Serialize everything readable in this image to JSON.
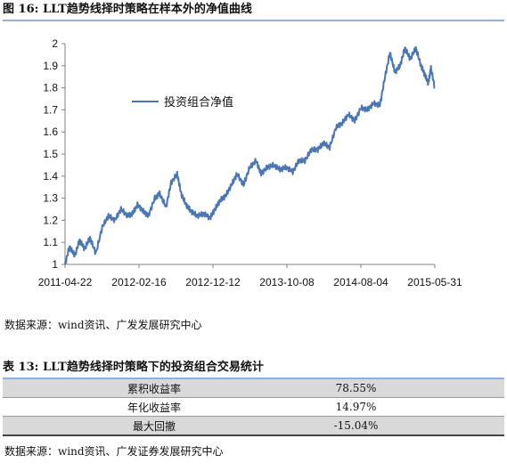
{
  "figure": {
    "title": "图 16: LLT趋势线择时策略在样本外的净值曲线",
    "source": "数据来源：wind资讯、广发发展研究中心"
  },
  "chart_data": {
    "type": "line",
    "x_ticks": [
      "2011-04-22",
      "2012-02-16",
      "2012-12-12",
      "2013-10-08",
      "2014-08-04",
      "2015-05-31"
    ],
    "y_ticks": [
      "1",
      "1.1",
      "1.2",
      "1.3",
      "1.4",
      "1.5",
      "1.6",
      "1.7",
      "1.8",
      "1.9",
      "2"
    ],
    "ylim": [
      1,
      2
    ],
    "xlim": [
      "2011-04-22",
      "2015-05-31"
    ],
    "legend": {
      "label": "投资组合净值",
      "placement": "upper-left"
    },
    "grid": false,
    "color": "#4a76b4",
    "series": [
      {
        "name": "投资组合净值",
        "x": [
          "2011-04-22",
          "2011-05-10",
          "2011-06-01",
          "2011-06-20",
          "2011-07-10",
          "2011-08-01",
          "2011-08-25",
          "2011-09-20",
          "2011-10-15",
          "2011-11-10",
          "2011-12-05",
          "2012-01-01",
          "2012-01-20",
          "2012-02-10",
          "2012-03-05",
          "2012-03-25",
          "2012-04-20",
          "2012-05-10",
          "2012-06-05",
          "2012-06-25",
          "2012-07-20",
          "2012-08-05",
          "2012-08-25",
          "2012-09-15",
          "2012-10-10",
          "2012-11-05",
          "2012-11-30",
          "2012-12-20",
          "2013-01-10",
          "2013-02-01",
          "2013-02-25",
          "2013-03-20",
          "2013-04-15",
          "2013-05-10",
          "2013-06-05",
          "2013-06-25",
          "2013-07-20",
          "2013-08-15",
          "2013-09-10",
          "2013-10-05",
          "2013-11-01",
          "2013-11-25",
          "2013-12-20",
          "2014-01-15",
          "2014-02-10",
          "2014-03-05",
          "2014-03-30",
          "2014-04-25",
          "2014-05-20",
          "2014-06-15",
          "2014-07-10",
          "2014-08-05",
          "2014-08-30",
          "2014-09-25",
          "2014-10-20",
          "2014-11-10",
          "2014-11-30",
          "2014-12-20",
          "2015-01-10",
          "2015-01-30",
          "2015-02-20",
          "2015-03-15",
          "2015-04-05",
          "2015-04-20",
          "2015-05-05",
          "2015-05-15",
          "2015-05-31"
        ],
        "values": [
          1.0,
          1.08,
          1.04,
          1.11,
          1.07,
          1.12,
          1.05,
          1.17,
          1.22,
          1.2,
          1.25,
          1.22,
          1.23,
          1.27,
          1.24,
          1.22,
          1.3,
          1.32,
          1.26,
          1.37,
          1.41,
          1.32,
          1.27,
          1.24,
          1.22,
          1.23,
          1.21,
          1.25,
          1.29,
          1.31,
          1.36,
          1.41,
          1.36,
          1.44,
          1.47,
          1.41,
          1.44,
          1.45,
          1.43,
          1.44,
          1.42,
          1.47,
          1.47,
          1.52,
          1.52,
          1.55,
          1.53,
          1.62,
          1.64,
          1.68,
          1.65,
          1.71,
          1.7,
          1.73,
          1.72,
          1.85,
          1.96,
          1.87,
          1.9,
          1.98,
          1.93,
          1.98,
          1.9,
          1.86,
          1.82,
          1.89,
          1.8
        ]
      }
    ]
  },
  "table": {
    "title": "表 13: LLT趋势线择时策略下的投资组合交易统计",
    "rows": [
      {
        "label": "累积收益率",
        "value": "78.55%"
      },
      {
        "label": "年化收益率",
        "value": "14.97%"
      },
      {
        "label": "最大回撤",
        "value": "-15.04%"
      }
    ],
    "source": "数据来源：wind资讯、广发证券发展研究中心"
  }
}
